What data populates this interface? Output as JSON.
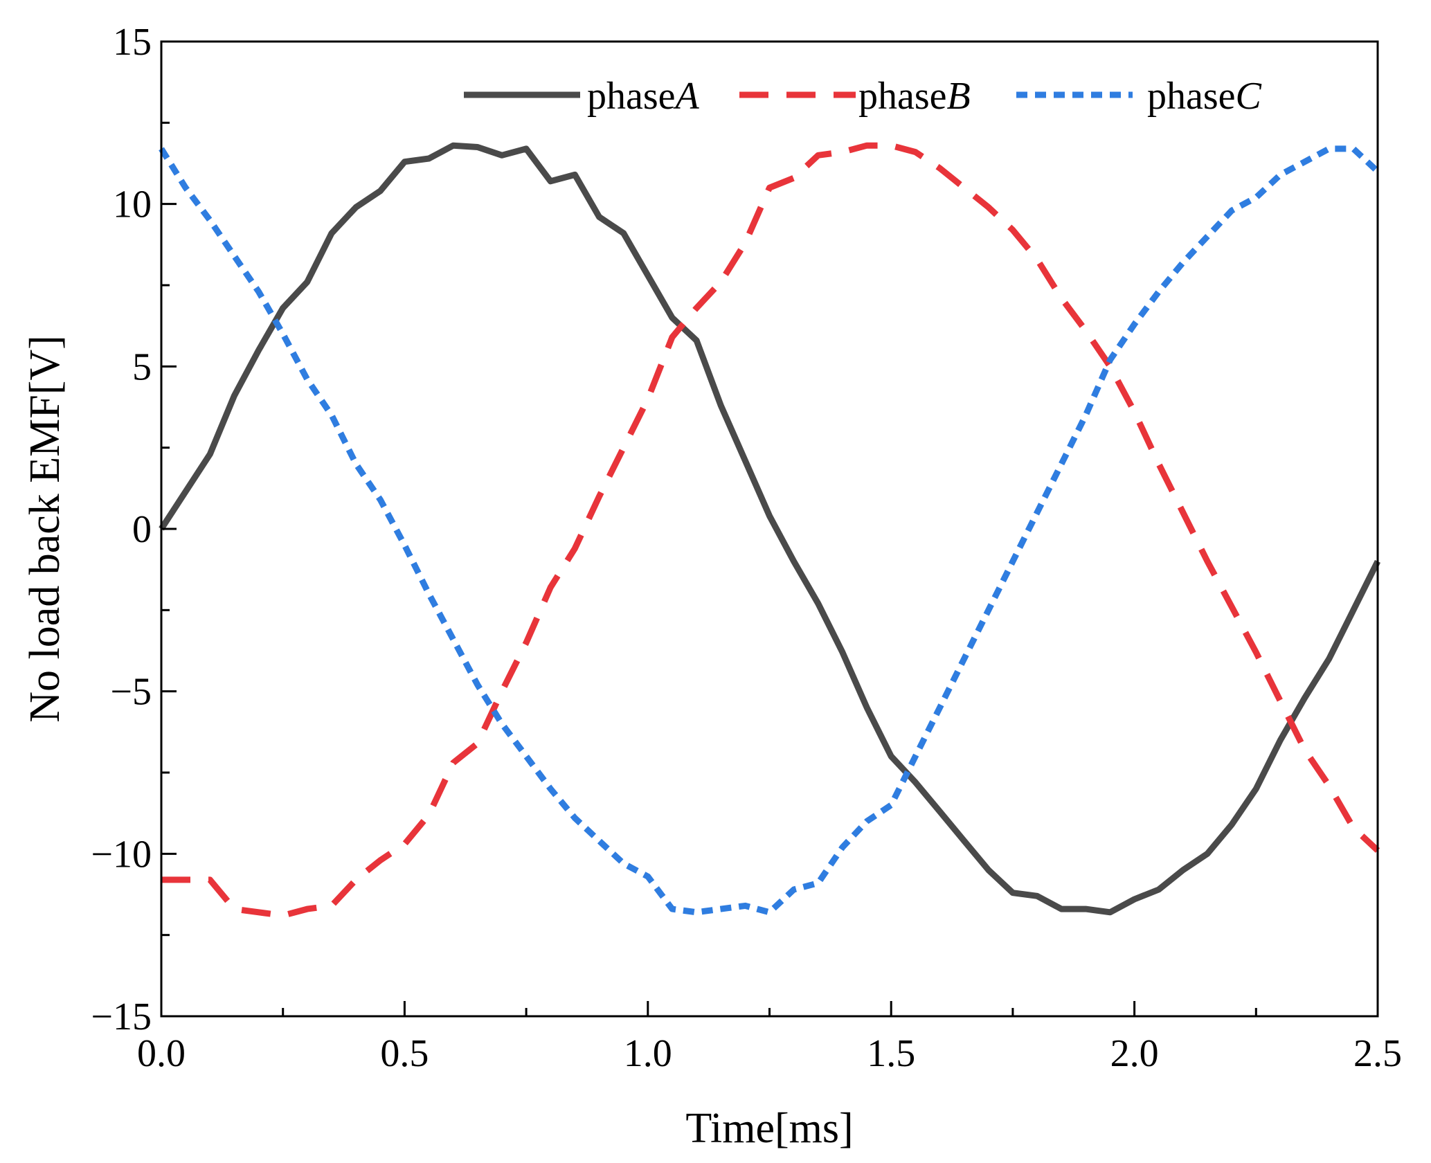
{
  "chart_data": {
    "type": "line",
    "title": "",
    "xlabel": "Time[ms]",
    "ylabel": "No load back EMF[V]",
    "xlim": [
      0,
      2.5
    ],
    "ylim": [
      -15,
      15
    ],
    "x_ticks": [
      0.0,
      0.5,
      1.0,
      1.5,
      2.0,
      2.5
    ],
    "x_tick_labels": [
      "0.0",
      "0.5",
      "1.0",
      "1.5",
      "2.0",
      "2.5"
    ],
    "y_ticks": [
      -15,
      -10,
      -5,
      0,
      5,
      10,
      15
    ],
    "y_tick_labels": [
      "−15",
      "−10",
      "−5",
      "0",
      "5",
      "10",
      "15"
    ],
    "grid": false,
    "legend_position": "top-right",
    "series": [
      {
        "name": "phaseA",
        "label_prefix": "phase",
        "label_italic": "A",
        "color": "#4a4a4a",
        "style": "solid",
        "points": [
          [
            0,
            0
          ],
          [
            0.1,
            2.3
          ],
          [
            0.15,
            4.1
          ],
          [
            0.2,
            5.5
          ],
          [
            0.25,
            6.8
          ],
          [
            0.3,
            7.6
          ],
          [
            0.35,
            9.1
          ],
          [
            0.4,
            9.9
          ],
          [
            0.45,
            10.4
          ],
          [
            0.5,
            11.3
          ],
          [
            0.55,
            11.4
          ],
          [
            0.6,
            11.8
          ],
          [
            0.65,
            11.75
          ],
          [
            0.7,
            11.5
          ],
          [
            0.75,
            11.7
          ],
          [
            0.8,
            10.7
          ],
          [
            0.85,
            10.9
          ],
          [
            0.9,
            9.6
          ],
          [
            0.95,
            9.1
          ],
          [
            1.0,
            7.8
          ],
          [
            1.05,
            6.5
          ],
          [
            1.1,
            5.8
          ],
          [
            1.15,
            3.8
          ],
          [
            1.2,
            2.1
          ],
          [
            1.25,
            0.4
          ],
          [
            1.3,
            -1.0
          ],
          [
            1.35,
            -2.3
          ],
          [
            1.4,
            -3.8
          ],
          [
            1.45,
            -5.5
          ],
          [
            1.5,
            -7.0
          ],
          [
            1.55,
            -7.8
          ],
          [
            1.6,
            -8.7
          ],
          [
            1.65,
            -9.6
          ],
          [
            1.7,
            -10.5
          ],
          [
            1.75,
            -11.2
          ],
          [
            1.8,
            -11.3
          ],
          [
            1.85,
            -11.7
          ],
          [
            1.9,
            -11.7
          ],
          [
            1.95,
            -11.8
          ],
          [
            2.0,
            -11.4
          ],
          [
            2.05,
            -11.1
          ],
          [
            2.1,
            -10.5
          ],
          [
            2.15,
            -10.0
          ],
          [
            2.2,
            -9.1
          ],
          [
            2.25,
            -8.0
          ],
          [
            2.3,
            -6.5
          ],
          [
            2.35,
            -5.2
          ],
          [
            2.4,
            -4.0
          ],
          [
            2.45,
            -2.5
          ],
          [
            2.5,
            -1.0
          ]
        ]
      },
      {
        "name": "phaseB",
        "label_prefix": "phase",
        "label_italic": "B",
        "color": "#e8343a",
        "style": "dashed",
        "points": [
          [
            0,
            -10.8
          ],
          [
            0.1,
            -10.8
          ],
          [
            0.15,
            -11.7
          ],
          [
            0.2,
            -11.8
          ],
          [
            0.25,
            -11.9
          ],
          [
            0.3,
            -11.7
          ],
          [
            0.35,
            -11.6
          ],
          [
            0.4,
            -10.8
          ],
          [
            0.45,
            -10.2
          ],
          [
            0.5,
            -9.7
          ],
          [
            0.55,
            -8.8
          ],
          [
            0.6,
            -7.2
          ],
          [
            0.65,
            -6.6
          ],
          [
            0.7,
            -5.0
          ],
          [
            0.75,
            -3.5
          ],
          [
            0.8,
            -1.8
          ],
          [
            0.85,
            -0.6
          ],
          [
            0.9,
            1.0
          ],
          [
            0.95,
            2.5
          ],
          [
            1.0,
            4.0
          ],
          [
            1.05,
            5.9
          ],
          [
            1.1,
            6.8
          ],
          [
            1.15,
            7.6
          ],
          [
            1.2,
            8.8
          ],
          [
            1.25,
            10.5
          ],
          [
            1.3,
            10.8
          ],
          [
            1.35,
            11.5
          ],
          [
            1.4,
            11.6
          ],
          [
            1.45,
            11.8
          ],
          [
            1.5,
            11.8
          ],
          [
            1.55,
            11.6
          ],
          [
            1.6,
            11.1
          ],
          [
            1.65,
            10.5
          ],
          [
            1.7,
            9.9
          ],
          [
            1.75,
            9.2
          ],
          [
            1.8,
            8.3
          ],
          [
            1.85,
            7.1
          ],
          [
            1.9,
            6.1
          ],
          [
            1.95,
            5.0
          ],
          [
            2.0,
            3.6
          ],
          [
            2.05,
            2.0
          ],
          [
            2.1,
            0.5
          ],
          [
            2.15,
            -1.0
          ],
          [
            2.2,
            -2.4
          ],
          [
            2.25,
            -3.8
          ],
          [
            2.3,
            -5.3
          ],
          [
            2.35,
            -6.8
          ],
          [
            2.4,
            -7.9
          ],
          [
            2.45,
            -9.2
          ],
          [
            2.5,
            -9.9
          ]
        ]
      },
      {
        "name": "phaseC",
        "label_prefix": "phase",
        "label_italic": "C",
        "color": "#2f7de0",
        "style": "dotted",
        "points": [
          [
            0,
            11.7
          ],
          [
            0.05,
            10.5
          ],
          [
            0.1,
            9.5
          ],
          [
            0.15,
            8.4
          ],
          [
            0.2,
            7.3
          ],
          [
            0.25,
            6.0
          ],
          [
            0.3,
            4.6
          ],
          [
            0.35,
            3.5
          ],
          [
            0.4,
            2.0
          ],
          [
            0.45,
            0.9
          ],
          [
            0.5,
            -0.5
          ],
          [
            0.55,
            -2.0
          ],
          [
            0.6,
            -3.4
          ],
          [
            0.65,
            -4.8
          ],
          [
            0.7,
            -6.0
          ],
          [
            0.75,
            -7.0
          ],
          [
            0.8,
            -8.0
          ],
          [
            0.85,
            -8.9
          ],
          [
            0.9,
            -9.6
          ],
          [
            0.95,
            -10.3
          ],
          [
            1.0,
            -10.7
          ],
          [
            1.05,
            -11.7
          ],
          [
            1.1,
            -11.8
          ],
          [
            1.15,
            -11.7
          ],
          [
            1.2,
            -11.6
          ],
          [
            1.25,
            -11.8
          ],
          [
            1.3,
            -11.1
          ],
          [
            1.35,
            -10.9
          ],
          [
            1.4,
            -9.8
          ],
          [
            1.45,
            -9.0
          ],
          [
            1.5,
            -8.5
          ],
          [
            1.55,
            -7.0
          ],
          [
            1.6,
            -5.5
          ],
          [
            1.65,
            -4.0
          ],
          [
            1.7,
            -2.5
          ],
          [
            1.75,
            -1.0
          ],
          [
            1.8,
            0.5
          ],
          [
            1.85,
            2.0
          ],
          [
            1.9,
            3.5
          ],
          [
            1.95,
            5.2
          ],
          [
            2.0,
            6.3
          ],
          [
            2.05,
            7.3
          ],
          [
            2.1,
            8.2
          ],
          [
            2.15,
            9.0
          ],
          [
            2.2,
            9.8
          ],
          [
            2.25,
            10.2
          ],
          [
            2.3,
            10.9
          ],
          [
            2.35,
            11.3
          ],
          [
            2.4,
            11.7
          ],
          [
            2.45,
            11.7
          ],
          [
            2.5,
            11.0
          ]
        ]
      }
    ]
  }
}
